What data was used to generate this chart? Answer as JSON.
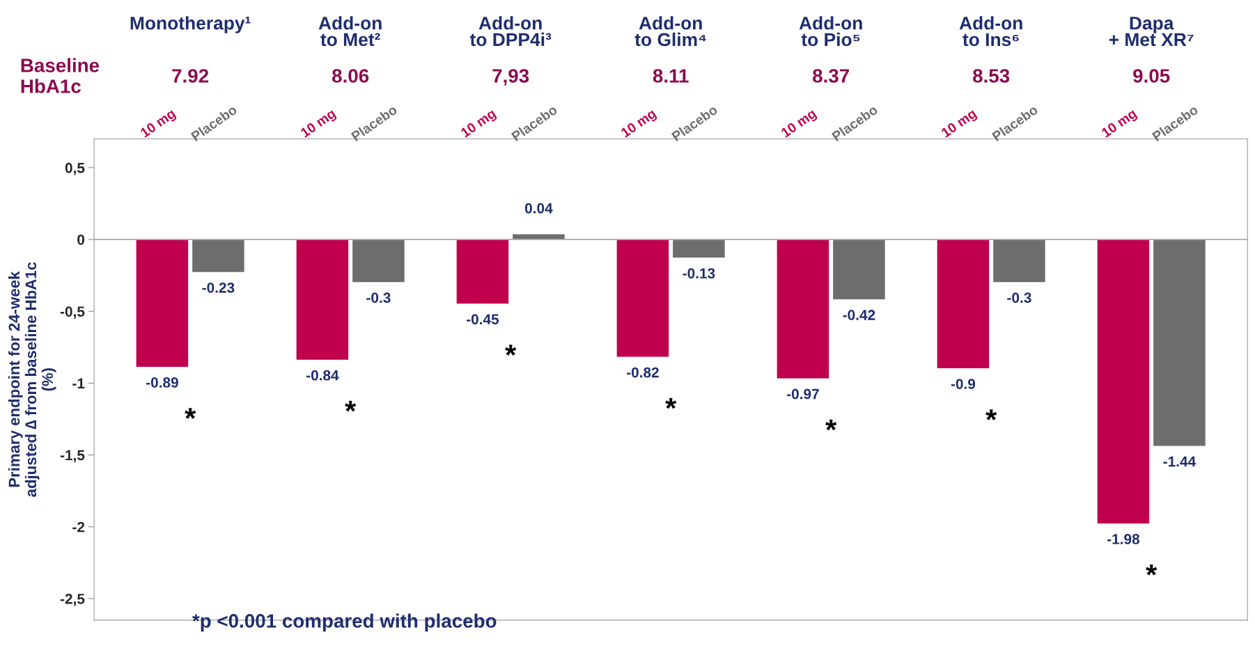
{
  "chart_data": {
    "type": "bar",
    "categories": [
      "Monotherapy¹",
      "Add-on\nto Met²",
      "Add-on\nto DPP4i³",
      "Add-on\nto Glim⁴",
      "Add-on\nto Pio⁵",
      "Add-on\nto Ins⁶",
      "Dapa\n+ Met XR⁷"
    ],
    "series": [
      {
        "name": "10 mg",
        "color": "#c0004f",
        "values": [
          -0.89,
          -0.84,
          -0.45,
          -0.82,
          -0.97,
          -0.9,
          -1.98
        ]
      },
      {
        "name": "Placebo",
        "color": "#6d6d6d",
        "values": [
          -0.23,
          -0.3,
          0.04,
          -0.13,
          -0.42,
          -0.3,
          -1.44
        ]
      }
    ],
    "ylabel": "Primary endpoint for 24-week\nadjusted ∆ from baseline HbA1c\n(%)",
    "ylim": [
      -2.65,
      0.7
    ],
    "yticks": [
      {
        "value": 0.5,
        "label": "0,5"
      },
      0,
      {
        "value": -0.5,
        "label": "-0,5"
      },
      -1,
      {
        "value": -1.5,
        "label": "-1,5"
      },
      -2,
      {
        "value": -2.5,
        "label": "-2,5"
      }
    ],
    "data_labels": true,
    "grid": false,
    "legend": false,
    "annotations": [
      "Baseline\nHbA1c",
      "7.92",
      "8.06",
      "7,93",
      "8.11",
      "8.37",
      "8.53",
      "9.05",
      "*",
      "*",
      "*",
      "*",
      "*",
      "*",
      "*",
      "*p <0.001 compared with placebo"
    ],
    "ref_lines": [
      {
        "axis": "y",
        "value": 0
      }
    ]
  }
}
